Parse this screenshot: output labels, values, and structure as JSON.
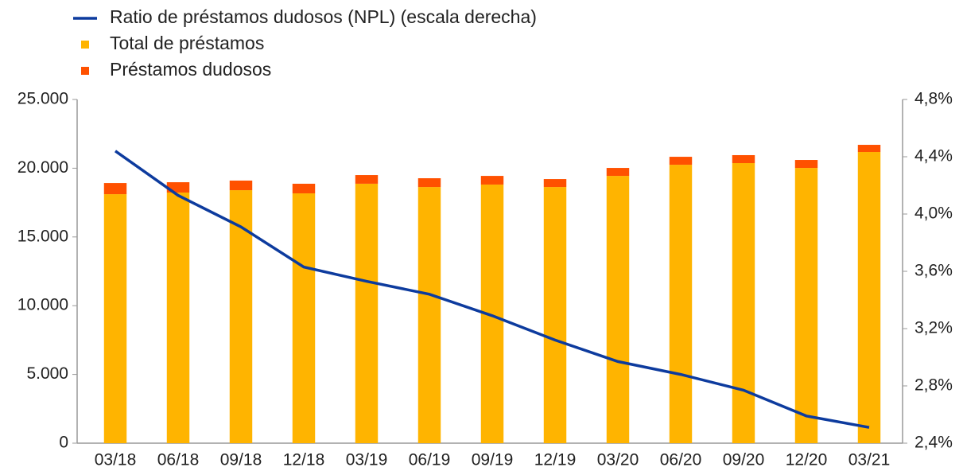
{
  "chart_data": {
    "type": "bar_line",
    "categories": [
      "03/18",
      "06/18",
      "09/18",
      "12/18",
      "03/19",
      "06/19",
      "09/19",
      "12/19",
      "03/20",
      "06/20",
      "09/20",
      "12/20",
      "03/21"
    ],
    "series": [
      {
        "name": "Total de préstamos",
        "color": "#ffb400",
        "type": "bar",
        "values": [
          18110,
          18230,
          18400,
          18170,
          18870,
          18630,
          18810,
          18630,
          19440,
          20250,
          20370,
          20020,
          21180
        ]
      },
      {
        "name": "Préstamos dudosos",
        "color": "#ff5100",
        "type": "bar",
        "values": [
          810,
          750,
          700,
          700,
          630,
          640,
          630,
          580,
          580,
          580,
          580,
          580,
          520
        ]
      },
      {
        "name": "Ratio de préstamos dudosos (NPL) (escala derecha)",
        "color": "#0d3b9e",
        "type": "line",
        "axis": "y2",
        "values": [
          4.44,
          4.13,
          3.91,
          3.63,
          3.53,
          3.44,
          3.29,
          3.12,
          2.97,
          2.88,
          2.77,
          2.59,
          2.51
        ]
      }
    ],
    "ylim": [
      0,
      25000
    ],
    "yticks": [
      0,
      {
        "value": 5000,
        "label": "5.000"
      },
      {
        "value": 10000,
        "label": "10.000"
      },
      {
        "value": 15000,
        "label": "15.000"
      },
      {
        "value": 20000,
        "label": "20.000"
      },
      {
        "value": 25000,
        "label": "25.000"
      }
    ],
    "y2lim": [
      2.4,
      4.8
    ],
    "y2ticks": [
      {
        "value": 2.4,
        "label": "2,4%"
      },
      {
        "value": 2.8,
        "label": "2,8%"
      },
      {
        "value": 3.2,
        "label": "3,2%"
      },
      {
        "value": 3.6,
        "label": "3,6%"
      },
      {
        "value": 4.0,
        "label": "4,0%"
      },
      {
        "value": 4.4,
        "label": "4,4%"
      },
      {
        "value": 4.8,
        "label": "4,8%"
      }
    ],
    "stacked": true,
    "grid": false
  }
}
